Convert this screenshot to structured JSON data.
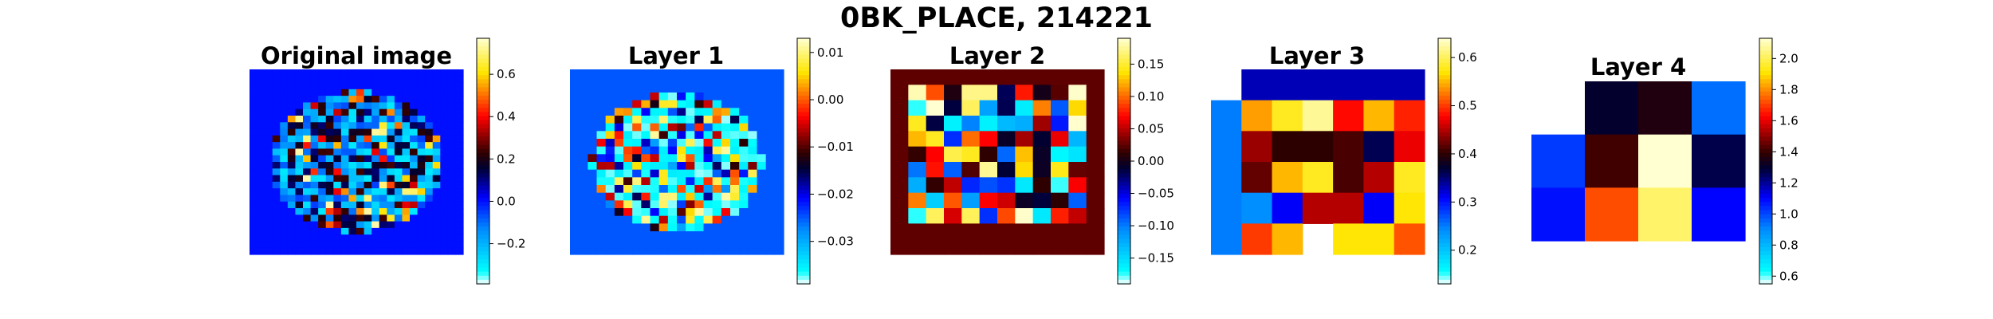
{
  "title": "0BK_PLACE, 214221",
  "chart_data": [
    {
      "type": "heatmap",
      "title": "Original image",
      "grid": false,
      "colormap": "flag-like diverging (cyan-blue-black-red-yellow)",
      "colorbar": {
        "range": [
          -0.39,
          0.77
        ],
        "ticks": [
          -0.2,
          0.0,
          0.2,
          0.4,
          0.6
        ],
        "tick_labels": [
          "−0.2",
          "0.0",
          "0.2",
          "0.4",
          "0.6"
        ]
      },
      "rows": 28,
      "cols": 28,
      "background_value": 0.0,
      "values": "noisy brain-slice pattern, values mostly in [-0.3, 0.6] within an elliptical mask"
    },
    {
      "type": "heatmap",
      "title": "Layer 1",
      "grid": false,
      "colorbar": {
        "range": [
          -0.039,
          0.013
        ],
        "ticks": [
          -0.03,
          -0.02,
          -0.01,
          0.0,
          0.01
        ],
        "tick_labels": [
          "−0.03",
          "−0.02",
          "−0.01",
          "0.00",
          "0.01"
        ]
      },
      "rows": 24,
      "cols": 24,
      "background_value": -0.025
    },
    {
      "type": "heatmap",
      "title": "Layer 2",
      "grid": false,
      "colorbar": {
        "range": [
          -0.19,
          0.19
        ],
        "ticks": [
          -0.15,
          -0.1,
          -0.05,
          0.0,
          0.05,
          0.1,
          0.15
        ],
        "tick_labels": [
          "−0.15",
          "−0.10",
          "−0.05",
          "0.00",
          "0.05",
          "0.10",
          "0.15"
        ]
      },
      "rows": 12,
      "cols": 12,
      "background_value": 0.025
    },
    {
      "type": "heatmap",
      "title": "Layer 3",
      "grid": false,
      "colorbar": {
        "range": [
          0.13,
          0.64
        ],
        "ticks": [
          0.2,
          0.3,
          0.4,
          0.5,
          0.6
        ],
        "tick_labels": [
          "0.2",
          "0.3",
          "0.4",
          "0.5",
          "0.6"
        ]
      },
      "rows": 6,
      "cols": 7,
      "values": [
        [
          null,
          0.33,
          0.33,
          0.33,
          0.33,
          0.33,
          0.33
        ],
        [
          0.25,
          0.54,
          0.58,
          0.62,
          0.48,
          0.55,
          0.49
        ],
        [
          0.25,
          0.44,
          0.4,
          0.4,
          0.41,
          0.36,
          0.47
        ],
        [
          0.25,
          0.42,
          0.55,
          0.58,
          0.41,
          0.45,
          0.58
        ],
        [
          0.25,
          0.24,
          0.31,
          0.45,
          0.45,
          0.31,
          0.57
        ],
        [
          0.25,
          0.5,
          0.55,
          null,
          0.57,
          0.57,
          0.51
        ]
      ]
    },
    {
      "type": "heatmap",
      "title": "Layer 4",
      "grid": false,
      "colorbar": {
        "range": [
          0.55,
          2.13
        ],
        "ticks": [
          0.6,
          0.8,
          1.0,
          1.2,
          1.4,
          1.6,
          1.8,
          2.0
        ],
        "tick_labels": [
          "0.6",
          "0.8",
          "1.0",
          "1.2",
          "1.4",
          "1.6",
          "1.8",
          "2.0"
        ]
      },
      "rows": 3,
      "cols": 4,
      "values": [
        [
          null,
          1.3,
          1.36,
          0.94
        ],
        [
          1.02,
          1.41,
          2.13,
          1.27
        ],
        [
          1.08,
          1.72,
          2.02,
          1.1
        ]
      ]
    }
  ]
}
